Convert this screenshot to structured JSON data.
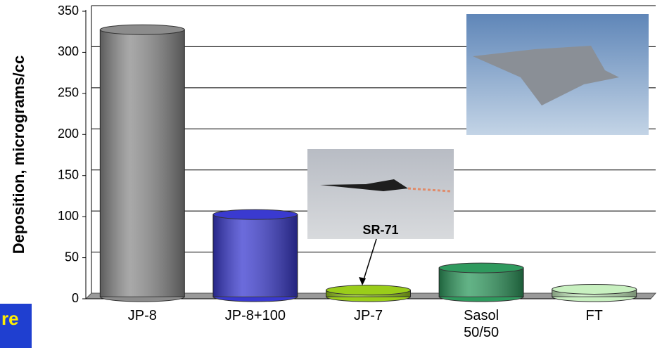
{
  "chart_data": {
    "type": "bar",
    "y_label": "Deposition, micrograms/cc",
    "categories": [
      "JP-8",
      "JP-8+100",
      "JP-7",
      "Sasol 50/50",
      "FT"
    ],
    "values": [
      325,
      100,
      8,
      35,
      9
    ],
    "colors": [
      "#8c8c8c",
      "#3a3ad0",
      "#9acd1a",
      "#2f9a5e",
      "#c8f0c0"
    ],
    "ylim": [
      0,
      350
    ],
    "yticks": [
      0,
      50,
      100,
      150,
      200,
      250,
      300,
      350
    ],
    "grid": true,
    "annotation": "SR-71",
    "corner_text": "re"
  }
}
